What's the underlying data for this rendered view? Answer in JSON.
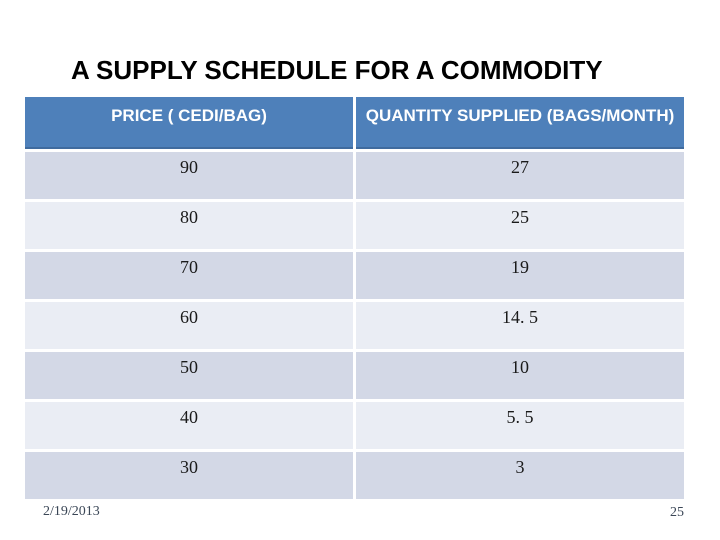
{
  "slide": {
    "title": "A SUPPLY SCHEDULE FOR A COMMODITY",
    "footer": {
      "date": "2/19/2013",
      "page_number": "25"
    }
  },
  "table": {
    "columns": [
      "PRICE ( CEDI/BAG)",
      "QUANTITY SUPPLIED (BAGS/MONTH)"
    ],
    "rows": [
      {
        "price": "90",
        "quantity": "27"
      },
      {
        "price": "80",
        "quantity": "25"
      },
      {
        "price": "70",
        "quantity": "19"
      },
      {
        "price": "60",
        "quantity": "14. 5"
      },
      {
        "price": "50",
        "quantity": "10"
      },
      {
        "price": "40",
        "quantity": "5. 5"
      },
      {
        "price": "30",
        "quantity": "3"
      }
    ]
  },
  "colors": {
    "header_bg": "#4e80ba",
    "header_text": "#ffffff",
    "row_band_dark": "#d3d8e6",
    "row_band_light": "#eaedf4",
    "title_text": "#000000",
    "footer_text": "#3a4656",
    "background": "#ffffff"
  }
}
